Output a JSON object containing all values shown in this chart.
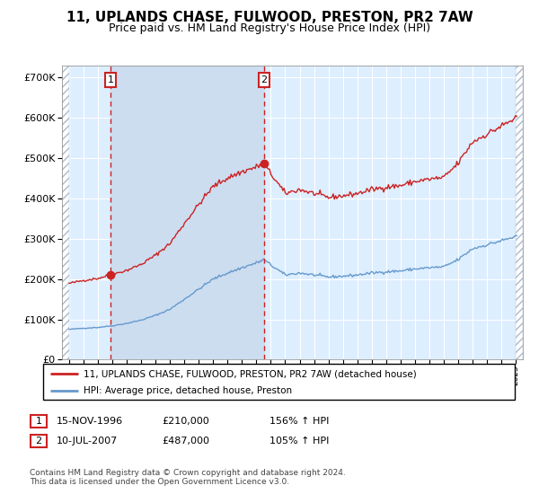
{
  "title": "11, UPLANDS CHASE, FULWOOD, PRESTON, PR2 7AW",
  "subtitle": "Price paid vs. HM Land Registry's House Price Index (HPI)",
  "title_fontsize": 11,
  "subtitle_fontsize": 9,
  "transaction1": {
    "date": "15-NOV-1996",
    "price": 210000,
    "hpi_pct": "156% ↑ HPI",
    "label": "1"
  },
  "transaction2": {
    "date": "10-JUL-2007",
    "price": 487000,
    "hpi_pct": "105% ↑ HPI",
    "label": "2"
  },
  "sale1_x": 1996.88,
  "sale2_x": 2007.53,
  "legend_line1": "11, UPLANDS CHASE, FULWOOD, PRESTON, PR2 7AW (detached house)",
  "legend_line2": "HPI: Average price, detached house, Preston",
  "footer": "Contains HM Land Registry data © Crown copyright and database right 2024.\nThis data is licensed under the Open Government Licence v3.0.",
  "hpi_color": "#6699cc",
  "price_color": "#cc2222",
  "background_color": "#ddeeff",
  "ylim": [
    0,
    730000
  ],
  "xlim_start": 1993.5,
  "xlim_end": 2025.5
}
